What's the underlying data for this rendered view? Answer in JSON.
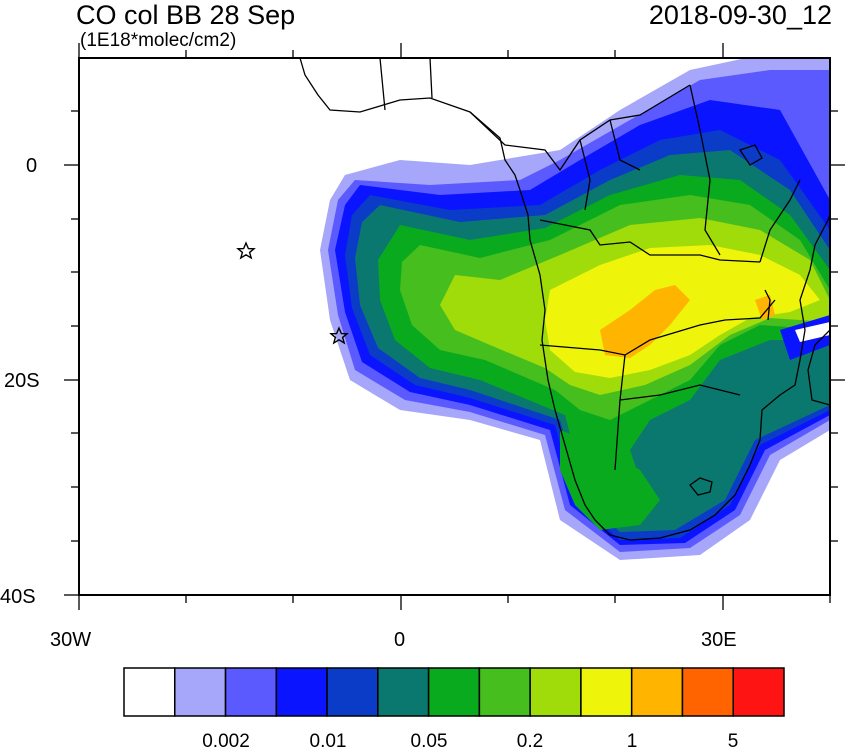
{
  "header": {
    "title": "CO col BB 28 Sep",
    "units": "(1E18*molec/cm2)",
    "datetime": "2018-09-30_12"
  },
  "axes": {
    "lat_ticks": [
      "0",
      "20S",
      "40S"
    ],
    "lon_ticks": [
      "30W",
      "0",
      "30E"
    ]
  },
  "colorbar": {
    "colors": [
      "#ffffff",
      "#a6a6fa",
      "#5a5aff",
      "#0a14ff",
      "#0a3cc8",
      "#0a786e",
      "#0aaa1e",
      "#46be1e",
      "#a0dc0a",
      "#eef50a",
      "#ffb400",
      "#ff6400",
      "#ff1414"
    ],
    "labels": [
      "0.002",
      "0.01",
      "0.05",
      "0.2",
      "1",
      "5"
    ]
  },
  "markers": {
    "icon": "star-icon"
  }
}
